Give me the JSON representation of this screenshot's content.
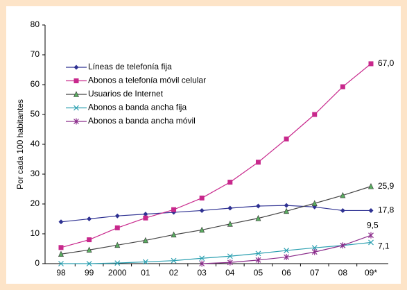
{
  "chart_data": {
    "type": "line",
    "y_label": "Por cada 100 habitantes",
    "categories": [
      "98",
      "99",
      "2000",
      "01",
      "02",
      "03",
      "04",
      "05",
      "06",
      "07",
      "08",
      "09*"
    ],
    "ylim": [
      0,
      80
    ],
    "yticks": [
      0,
      10,
      20,
      30,
      40,
      50,
      60,
      70,
      80
    ],
    "legend": "top-left",
    "series": [
      {
        "name": "Líneas de telefonía fija",
        "color": "#2e3192",
        "marker": "diamond",
        "values": [
          14,
          15,
          16,
          16.6,
          17.2,
          17.8,
          18.6,
          19.3,
          19.5,
          19,
          17.8,
          17.8
        ],
        "value_labels": [
          null,
          null,
          null,
          null,
          null,
          null,
          null,
          null,
          null,
          null,
          null,
          "17,8"
        ]
      },
      {
        "name": "Abonos a telefonía móvil celular",
        "color": "#c8288c",
        "marker": "square",
        "values": [
          5.4,
          8,
          12,
          15.3,
          18.1,
          22,
          27.3,
          34,
          41.8,
          50,
          59.3,
          67
        ],
        "value_labels": [
          null,
          null,
          null,
          null,
          null,
          null,
          null,
          null,
          null,
          null,
          null,
          "67,0"
        ]
      },
      {
        "name": "Usuarios de Internet",
        "color": "#5aae61",
        "marker": "triangle",
        "values": [
          3.2,
          4.6,
          6.2,
          7.8,
          9.7,
          11.3,
          13.3,
          15.2,
          17.6,
          20.2,
          22.9,
          25.9
        ],
        "value_labels": [
          null,
          null,
          null,
          null,
          null,
          null,
          null,
          null,
          null,
          null,
          null,
          "25,9"
        ]
      },
      {
        "name": "Abonos a banda ancha fija",
        "color": "#2a9fb0",
        "marker": "x",
        "values": [
          0,
          0,
          0.2,
          0.6,
          1,
          1.8,
          2.5,
          3.4,
          4.4,
          5.3,
          6.1,
          7.1
        ],
        "value_labels": [
          null,
          null,
          null,
          null,
          null,
          null,
          null,
          null,
          null,
          null,
          null,
          "7,1"
        ]
      },
      {
        "name": "Abonos a banda ancha móvil",
        "color": "#8b2c8b",
        "marker": "star",
        "values": [
          null,
          null,
          null,
          null,
          null,
          0,
          0.4,
          1.2,
          2.2,
          3.9,
          6.1,
          9.5
        ],
        "value_labels": [
          null,
          null,
          null,
          null,
          null,
          null,
          null,
          null,
          null,
          null,
          null,
          "9,5"
        ]
      }
    ]
  }
}
